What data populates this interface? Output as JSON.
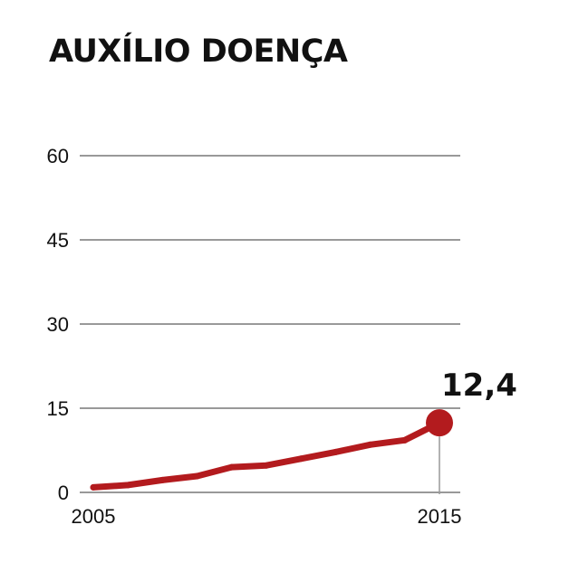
{
  "chart_data": {
    "type": "line",
    "title": "AUXÍLIO DOENÇA",
    "xlabel": "",
    "ylabel": "",
    "x": [
      2005,
      2006,
      2007,
      2008,
      2009,
      2010,
      2011,
      2012,
      2013,
      2014,
      2015
    ],
    "series": [
      {
        "values": [
          0.9,
          1.3,
          2.2,
          2.9,
          4.5,
          4.8,
          6.0,
          7.2,
          8.5,
          9.3,
          12.4
        ]
      }
    ],
    "xlim": [
      2005,
      2015
    ],
    "ylim": [
      0,
      60
    ],
    "yticks": [
      "0",
      "15",
      "30",
      "45",
      "60"
    ],
    "xticks": [
      "2005",
      "2015"
    ],
    "end_label": "12,4",
    "grid": true,
    "colors": {
      "line": "#b31b1e",
      "grid": "#999999",
      "text": "#111111"
    }
  }
}
